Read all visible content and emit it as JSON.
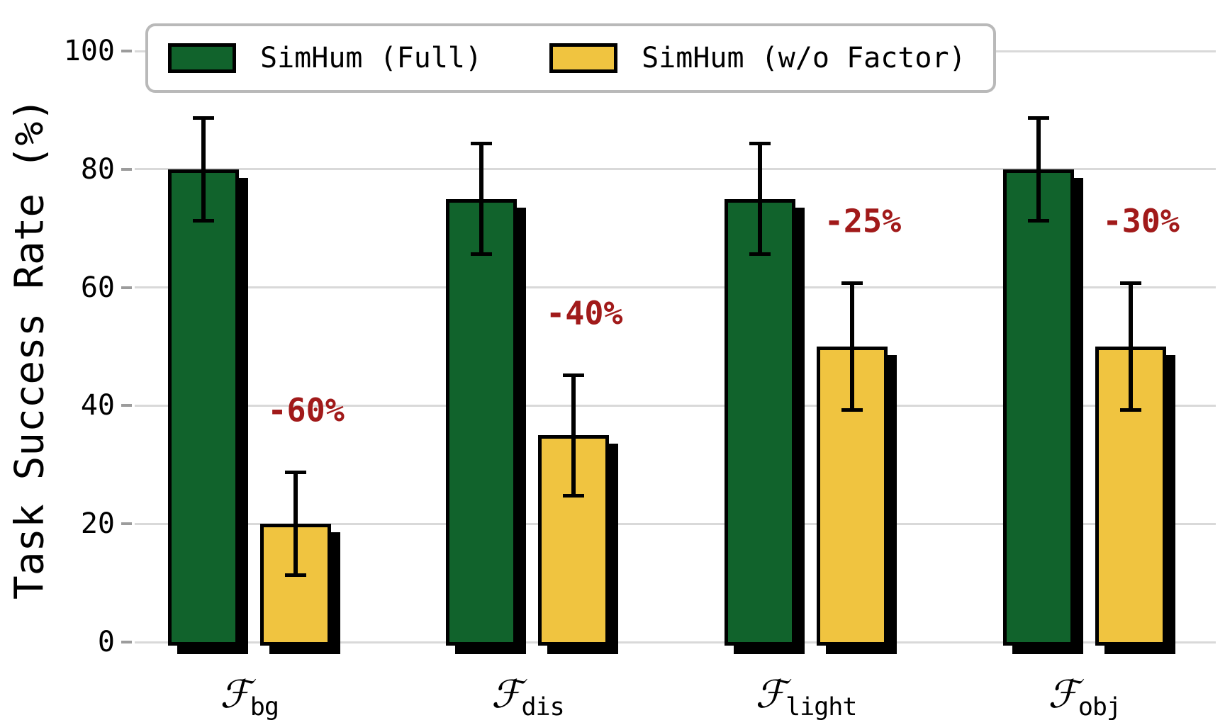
{
  "chart_data": {
    "type": "bar",
    "title": "",
    "xlabel": "",
    "ylabel": "Task Success Rate (%)",
    "ylim": [
      0,
      100
    ],
    "yticks": [
      0,
      20,
      40,
      60,
      80,
      100
    ],
    "grid": true,
    "legend_position": "top",
    "grid_color": "#d9d9d9",
    "bar_edge_color": "#000000",
    "annotation_color": "#A11A1A",
    "categories": [
      {
        "symbol": "ℱ",
        "subscript": "bg"
      },
      {
        "symbol": "ℱ",
        "subscript": "dis"
      },
      {
        "symbol": "ℱ",
        "subscript": "light"
      },
      {
        "symbol": "ℱ",
        "subscript": "obj"
      }
    ],
    "series": [
      {
        "name": "SimHum (Full)",
        "color": "#11632C",
        "values": [
          80,
          75,
          75,
          80
        ],
        "errors": [
          9,
          9.7,
          9.7,
          9
        ]
      },
      {
        "name": "SimHum (w/o Factor)",
        "color": "#F0C440",
        "values": [
          20,
          35,
          50,
          50
        ],
        "errors": [
          9,
          10.5,
          11,
          11
        ]
      }
    ],
    "annotations": [
      {
        "text": "-60%",
        "group": 0
      },
      {
        "text": "-40%",
        "group": 1
      },
      {
        "text": "-25%",
        "group": 2
      },
      {
        "text": "-30%",
        "group": 3
      }
    ]
  }
}
